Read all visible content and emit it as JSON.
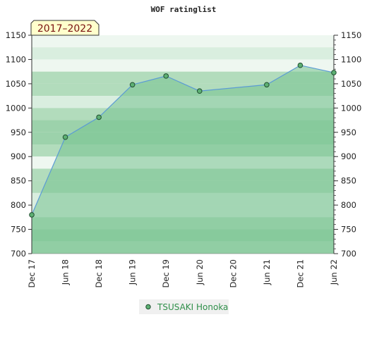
{
  "title": "WOF ratinglist",
  "badge": "2017–2022",
  "colors": {
    "band_light": "#eef7f0",
    "band_pale": "#d9eedf",
    "band_mid": "#b2dcbc",
    "band_strong": "#9cd2ab",
    "fill": "#76c28f",
    "fill_opacity": 0.55,
    "line": "#5b9bd5",
    "marker_fill": "#5db073",
    "marker_stroke": "#1f4d2e",
    "legend_text": "#2f8f4a",
    "badge_bg": "#ffffcc",
    "badge_text": "#7a1010"
  },
  "chart_data": {
    "type": "area",
    "title": "WOF ratinglist",
    "x": [
      "2017-12",
      "2018-06",
      "2018-12",
      "2019-06",
      "2019-12",
      "2020-06",
      "2021-06",
      "2021-12",
      "2022-06"
    ],
    "series": [
      {
        "name": "TSUSAKI Honoka",
        "values": [
          780,
          940,
          981,
          1048,
          1066,
          1035,
          1048,
          1088,
          1073
        ]
      }
    ],
    "x_tick_labels": [
      "Dec 17",
      "Jun 18",
      "Dec 18",
      "Jun 19",
      "Dec 19",
      "Jun 20",
      "Dec 20",
      "Jun 21",
      "Dec 21",
      "Jun 22"
    ],
    "y_ticks": [
      700,
      750,
      800,
      850,
      900,
      950,
      1000,
      1050,
      1100,
      1150
    ],
    "ylim": [
      700,
      1150
    ],
    "xlim": [
      "2017-12",
      "2022-06"
    ],
    "legend_position": "bottom-center",
    "grid": true
  }
}
